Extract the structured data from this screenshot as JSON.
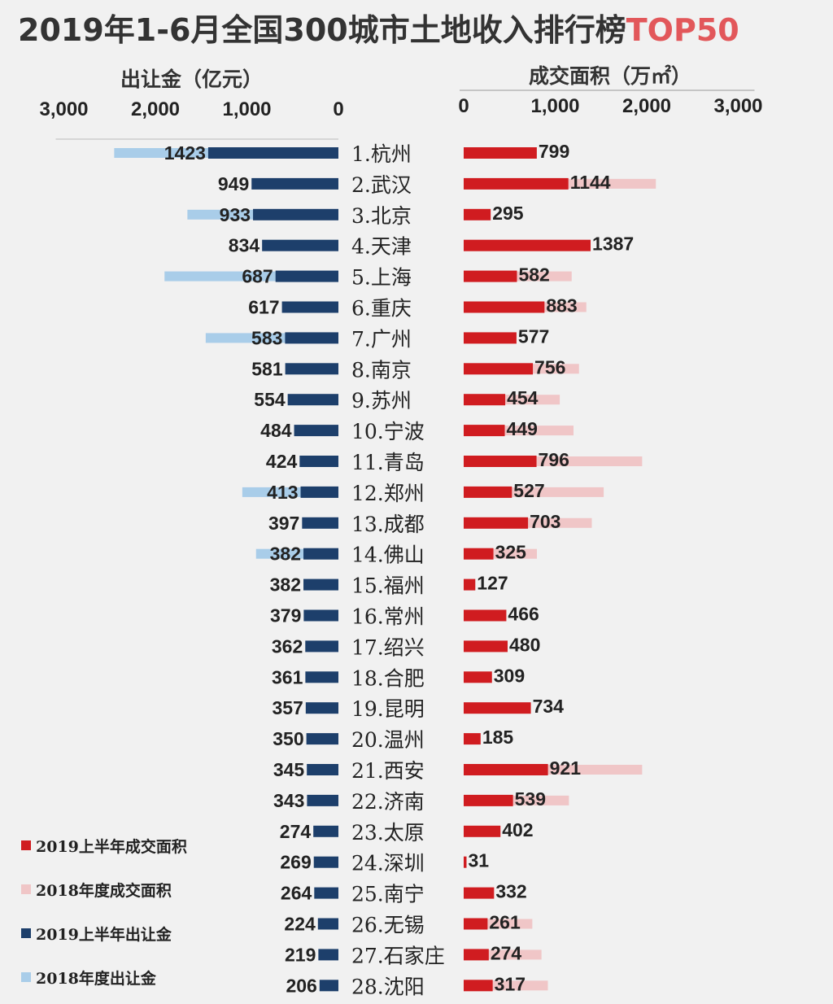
{
  "title": {
    "main": "2019年1-6月全国300城市土地收入排行榜",
    "highlight": "TOP50"
  },
  "colors": {
    "land_price_2019h1": "#1d3f6b",
    "land_price_2018": "#a9cde9",
    "area_2019h1": "#d01c20",
    "area_2018": "#f0c6c7"
  },
  "chart_data": [
    {
      "type": "bar",
      "orientation": "horizontal",
      "direction": "right-to-left",
      "axis_title": "出让金（亿元）",
      "tick_labels": [
        "3,000",
        "2,000",
        "1,000",
        "0"
      ],
      "xlim": [
        0,
        3000
      ],
      "categories": [
        "1.杭州",
        "2.武汉",
        "3.北京",
        "4.天津",
        "5.上海",
        "6.重庆",
        "7.广州",
        "8.南京",
        "9.苏州",
        "10.宁波",
        "11.青岛",
        "12.郑州",
        "13.成都",
        "14.佛山",
        "15.福州",
        "16.常州",
        "17.绍兴",
        "18.合肥",
        "19.昆明",
        "20.温州",
        "21.西安",
        "22.济南",
        "23.太原",
        "24.深圳",
        "25.南宁",
        "26.无锡",
        "27.石家庄",
        "28.沈阳"
      ],
      "series": [
        {
          "name": "2019上半年出让金",
          "values": [
            1423,
            949,
            933,
            834,
            687,
            617,
            583,
            581,
            554,
            484,
            424,
            413,
            397,
            382,
            382,
            379,
            362,
            361,
            357,
            350,
            345,
            343,
            274,
            269,
            264,
            224,
            219,
            206
          ]
        },
        {
          "name": "2018年度出让金",
          "values": [
            2450,
            null,
            1650,
            null,
            1900,
            null,
            1450,
            null,
            null,
            null,
            null,
            1050,
            null,
            900,
            null,
            null,
            null,
            null,
            null,
            null,
            null,
            null,
            null,
            null,
            null,
            null,
            null,
            null
          ]
        }
      ]
    },
    {
      "type": "bar",
      "orientation": "horizontal",
      "direction": "left-to-right",
      "axis_title": "成交面积（万㎡）",
      "tick_labels": [
        "0",
        "1,000",
        "2,000",
        "3,000"
      ],
      "xlim": [
        0,
        3000
      ],
      "categories": [
        "1.杭州",
        "2.武汉",
        "3.北京",
        "4.天津",
        "5.上海",
        "6.重庆",
        "7.广州",
        "8.南京",
        "9.苏州",
        "10.宁波",
        "11.青岛",
        "12.郑州",
        "13.成都",
        "14.佛山",
        "15.福州",
        "16.常州",
        "17.绍兴",
        "18.合肥",
        "19.昆明",
        "20.温州",
        "21.西安",
        "22.济南",
        "23.太原",
        "24.深圳",
        "25.南宁",
        "26.无锡",
        "27.石家庄",
        "28.沈阳"
      ],
      "series": [
        {
          "name": "2019上半年成交面积",
          "values": [
            799,
            1144,
            295,
            1387,
            582,
            883,
            577,
            756,
            454,
            449,
            796,
            527,
            703,
            325,
            127,
            466,
            480,
            309,
            734,
            185,
            921,
            539,
            402,
            31,
            332,
            261,
            274,
            317
          ]
        },
        {
          "name": "2018年度成交面积",
          "values": [
            null,
            2100,
            null,
            null,
            1180,
            1340,
            null,
            1260,
            1050,
            1200,
            1950,
            1530,
            1400,
            800,
            null,
            null,
            null,
            null,
            null,
            null,
            1950,
            1150,
            null,
            null,
            null,
            750,
            850,
            920
          ]
        }
      ]
    }
  ],
  "legend": [
    {
      "label": "2019上半年成交面积",
      "color": "#d01c20"
    },
    {
      "label": "2018年度成交面积",
      "color": "#f0c6c7"
    },
    {
      "label": "2019上半年出让金",
      "color": "#1d3f6b"
    },
    {
      "label": "2018年度出让金",
      "color": "#a9cde9"
    }
  ]
}
